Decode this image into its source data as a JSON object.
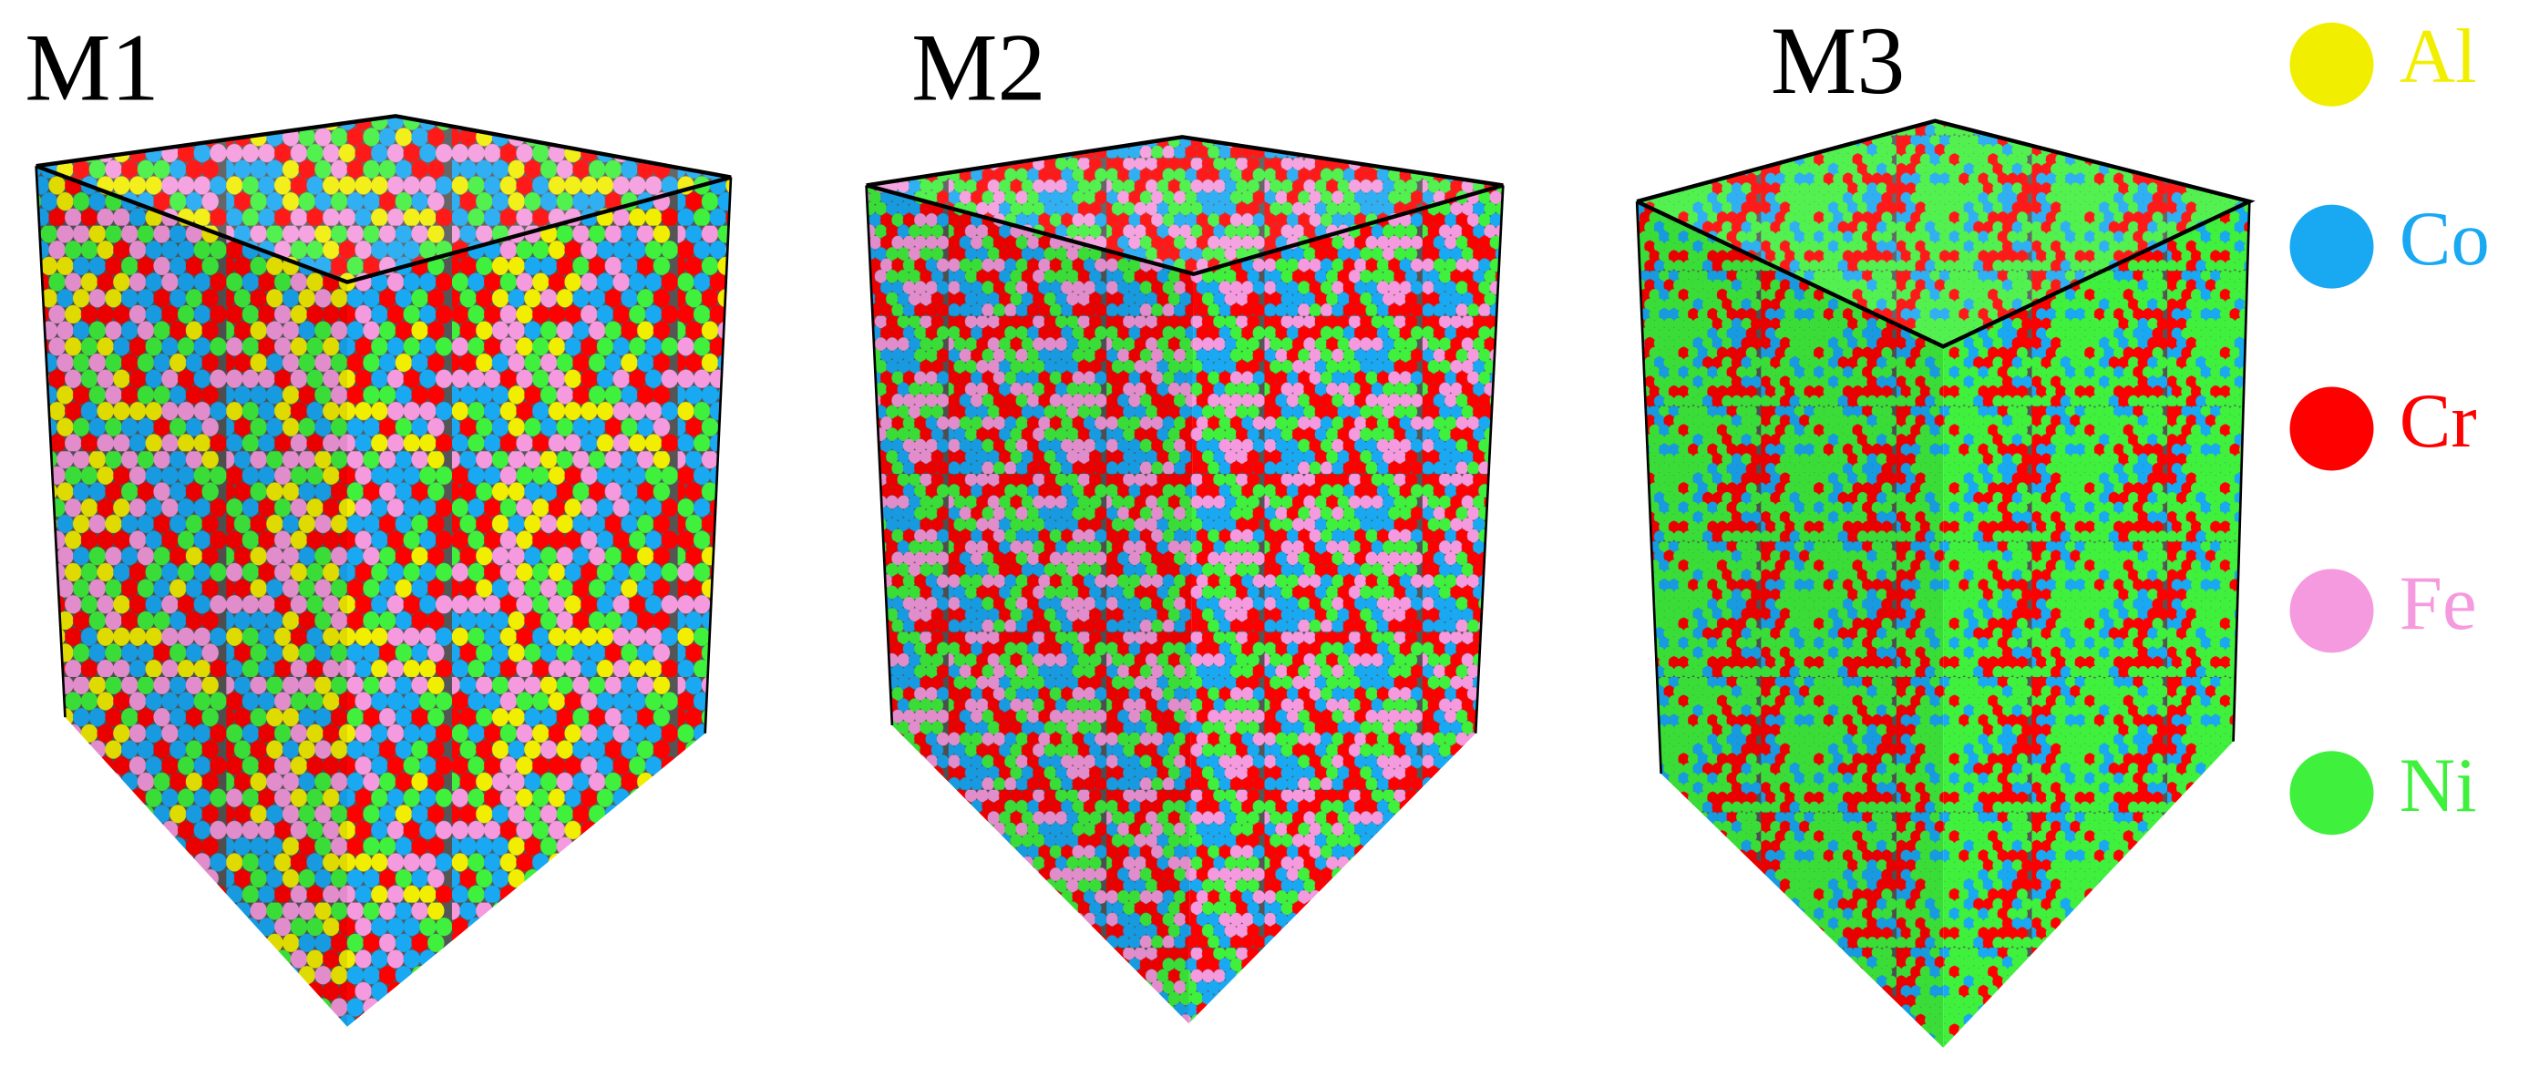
{
  "panels": [
    {
      "label": "M1"
    },
    {
      "label": "M2"
    },
    {
      "label": "M3"
    }
  ],
  "legend": [
    {
      "label": "Al",
      "color": "#f2ee00"
    },
    {
      "label": "Co",
      "color": "#19a8f2"
    },
    {
      "label": "Cr",
      "color": "#ff0000"
    },
    {
      "label": "Fe",
      "color": "#f59ade"
    },
    {
      "label": "Ni",
      "color": "#3ff03c"
    }
  ]
}
